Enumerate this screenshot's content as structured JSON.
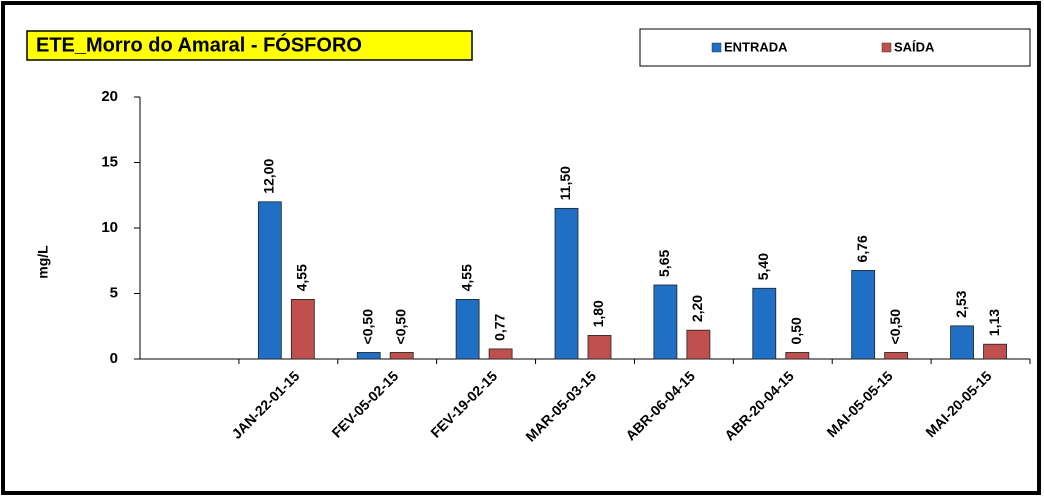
{
  "chart_data": {
    "type": "bar",
    "title": "ETE_Morro do Amaral - FÓSFORO",
    "y_label": "mg/L",
    "categories": [
      null,
      "JAN-22-01-15",
      "FEV-05-02-15",
      "FEV-19-02-15",
      "MAR-05-03-15",
      "ABR-06-04-15",
      "ABR-20-04-15",
      "MAI-05-05-15",
      "MAI-20-05-15"
    ],
    "series": [
      {
        "name": "ENTRADA",
        "color": "#1f6fc5",
        "values": [
          null,
          12.0,
          0.5,
          4.55,
          11.5,
          5.65,
          5.4,
          6.76,
          2.53
        ],
        "value_labels": [
          null,
          "12,00",
          "<0,50",
          "4,55",
          "11,50",
          "5,65",
          "5,40",
          "6,76",
          "2,53"
        ]
      },
      {
        "name": "SAÍDA",
        "color": "#c0504d",
        "values": [
          null,
          4.55,
          0.5,
          0.77,
          1.8,
          2.2,
          0.5,
          0.5,
          1.13
        ],
        "value_labels": [
          null,
          "4,55",
          "<0,50",
          "0,77",
          "1,80",
          "2,20",
          "0,50",
          "<0,50",
          "1,13"
        ]
      }
    ],
    "ylim": [
      0,
      20
    ],
    "yticks": [
      0,
      5,
      10,
      15,
      20
    ]
  }
}
